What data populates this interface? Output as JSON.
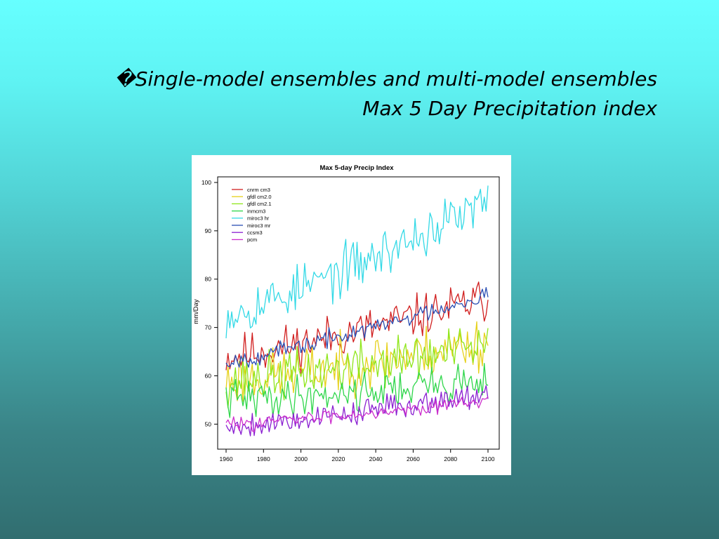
{
  "slide": {
    "title_line1": "�Single-model ensembles and multi-model ensembles",
    "title_line2": "Max 5 Day Precipitation index"
  },
  "chart_data": {
    "type": "line",
    "title": "Max 5-day Precip Index",
    "xlabel": "",
    "ylabel": "mm/Day",
    "xlim": [
      1960,
      2100
    ],
    "ylim": [
      47,
      100
    ],
    "x_ticks": [
      1960,
      1980,
      2000,
      2020,
      2040,
      2060,
      2080,
      2100
    ],
    "y_ticks": [
      50,
      60,
      70,
      80,
      90,
      100
    ],
    "grid": false,
    "legend_position": "top-left",
    "series": [
      {
        "name": "cnrm cm3",
        "color": "#d11f1f",
        "start": 64,
        "end": 76,
        "noise": 4.5,
        "seed": 11
      },
      {
        "name": "gfdl cm2.0",
        "color": "#e6d11a",
        "start": 59,
        "end": 67,
        "noise": 5.5,
        "seed": 23
      },
      {
        "name": "gfdl cm2.1",
        "color": "#8fe61a",
        "start": 59,
        "end": 66,
        "noise": 5,
        "seed": 37
      },
      {
        "name": "inmcm3",
        "color": "#2ed64a",
        "start": 55,
        "end": 59,
        "noise": 4,
        "seed": 41
      },
      {
        "name": "miroc3 hr",
        "color": "#33d9e6",
        "start": 73,
        "end": 96,
        "noise": 5,
        "seed": 53
      },
      {
        "name": "miroc3 mr",
        "color": "#2a4fb3",
        "start": 63,
        "end": 77,
        "noise": 1.8,
        "seed": 67
      },
      {
        "name": "ccsm3",
        "color": "#8a1fd1",
        "start": 49.5,
        "end": 56.5,
        "noise": 2.6,
        "seed": 79
      },
      {
        "name": "pcm",
        "color": "#cc2ecc",
        "start": 50,
        "end": 55,
        "noise": 1.4,
        "seed": 83
      }
    ]
  }
}
